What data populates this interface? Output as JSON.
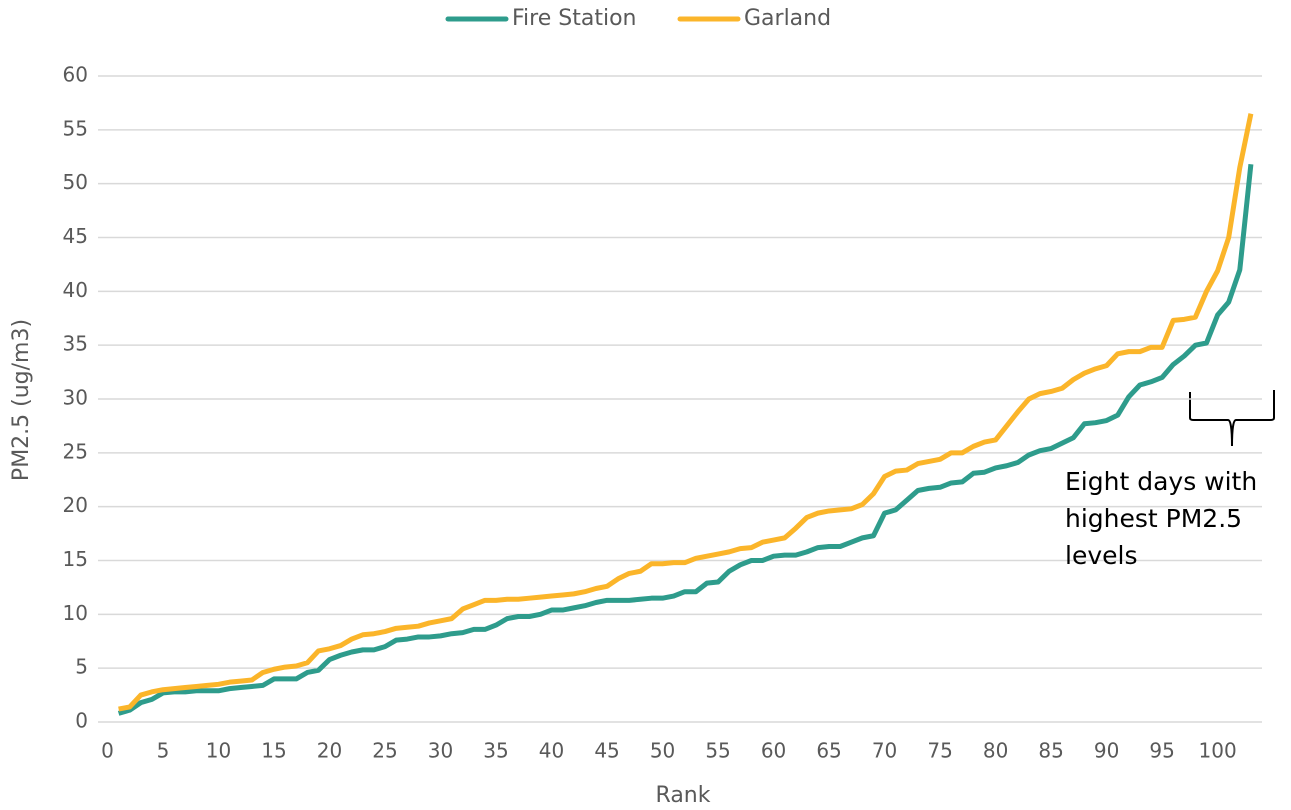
{
  "chart_data": {
    "type": "line",
    "x": [
      1,
      2,
      3,
      4,
      5,
      6,
      7,
      8,
      9,
      10,
      11,
      12,
      13,
      14,
      15,
      16,
      17,
      18,
      19,
      20,
      21,
      22,
      23,
      24,
      25,
      26,
      27,
      28,
      29,
      30,
      31,
      32,
      33,
      34,
      35,
      36,
      37,
      38,
      39,
      40,
      41,
      42,
      43,
      44,
      45,
      46,
      47,
      48,
      49,
      50,
      51,
      52,
      53,
      54,
      55,
      56,
      57,
      58,
      59,
      60,
      61,
      62,
      63,
      64,
      65,
      66,
      67,
      68,
      69,
      70,
      71,
      72,
      73,
      74,
      75,
      76,
      77,
      78,
      79,
      80,
      81,
      82,
      83,
      84,
      85,
      86,
      87,
      88,
      89,
      90,
      91,
      92,
      93,
      94,
      95,
      96,
      97,
      98,
      99,
      100,
      101,
      102,
      103
    ],
    "series": [
      {
        "name": "Fire Station",
        "color": "#2e9c8c",
        "values": [
          0.8,
          1.1,
          1.8,
          2.1,
          2.7,
          2.8,
          2.8,
          2.9,
          2.9,
          2.9,
          3.1,
          3.2,
          3.3,
          3.4,
          4.0,
          4.0,
          4.0,
          4.6,
          4.8,
          5.8,
          6.2,
          6.5,
          6.7,
          6.7,
          7.0,
          7.6,
          7.7,
          7.9,
          7.9,
          8.0,
          8.2,
          8.3,
          8.6,
          8.6,
          9.0,
          9.6,
          9.8,
          9.8,
          10.0,
          10.4,
          10.4,
          10.6,
          10.8,
          11.1,
          11.3,
          11.3,
          11.3,
          11.4,
          11.5,
          11.5,
          11.7,
          12.1,
          12.1,
          12.9,
          13.0,
          14.0,
          14.6,
          15.0,
          15.0,
          15.4,
          15.5,
          15.5,
          15.8,
          16.2,
          16.3,
          16.3,
          16.7,
          17.1,
          17.3,
          19.4,
          19.7,
          20.6,
          21.5,
          21.7,
          21.8,
          22.2,
          22.3,
          23.1,
          23.2,
          23.6,
          23.8,
          24.1,
          24.8,
          25.2,
          25.4,
          25.9,
          26.4,
          27.7,
          27.8,
          28.0,
          28.5,
          30.2,
          31.3,
          31.6,
          32.0,
          33.2,
          34.0,
          35.0,
          35.2,
          37.8,
          39.0,
          42.0,
          51.8
        ]
      },
      {
        "name": "Garland",
        "color": "#fbb52a",
        "values": [
          1.2,
          1.4,
          2.5,
          2.8,
          3.0,
          3.1,
          3.2,
          3.3,
          3.4,
          3.5,
          3.7,
          3.8,
          3.9,
          4.6,
          4.9,
          5.1,
          5.2,
          5.5,
          6.6,
          6.8,
          7.1,
          7.7,
          8.1,
          8.2,
          8.4,
          8.7,
          8.8,
          8.9,
          9.2,
          9.4,
          9.6,
          10.5,
          10.9,
          11.3,
          11.3,
          11.4,
          11.4,
          11.5,
          11.6,
          11.7,
          11.8,
          11.9,
          12.1,
          12.4,
          12.6,
          13.3,
          13.8,
          14.0,
          14.7,
          14.7,
          14.8,
          14.8,
          15.2,
          15.4,
          15.6,
          15.8,
          16.1,
          16.2,
          16.7,
          16.9,
          17.1,
          18.0,
          19.0,
          19.4,
          19.6,
          19.7,
          19.8,
          20.2,
          21.2,
          22.8,
          23.3,
          23.4,
          24.0,
          24.2,
          24.4,
          25.0,
          25.0,
          25.6,
          26.0,
          26.2,
          27.5,
          28.8,
          30.0,
          30.5,
          30.7,
          31.0,
          31.8,
          32.4,
          32.8,
          33.1,
          34.2,
          34.4,
          34.4,
          34.8,
          34.8,
          37.3,
          37.4,
          37.6,
          40.0,
          41.9,
          45.0,
          51.5,
          56.5
        ]
      }
    ],
    "xlabel": "Rank",
    "ylabel": "PM2.5 (ug/m3)",
    "xlim": [
      0,
      104
    ],
    "xticks": [
      0,
      5,
      10,
      15,
      20,
      25,
      30,
      35,
      40,
      45,
      50,
      55,
      60,
      65,
      70,
      75,
      80,
      85,
      90,
      95,
      100
    ],
    "ylim": [
      0,
      60
    ],
    "yticks": [
      0,
      5,
      10,
      15,
      20,
      25,
      30,
      35,
      40,
      45,
      50,
      55,
      60
    ],
    "grid": true,
    "legend": "top",
    "annotation": [
      "Eight days with",
      "highest PM2.5",
      "levels"
    ]
  }
}
